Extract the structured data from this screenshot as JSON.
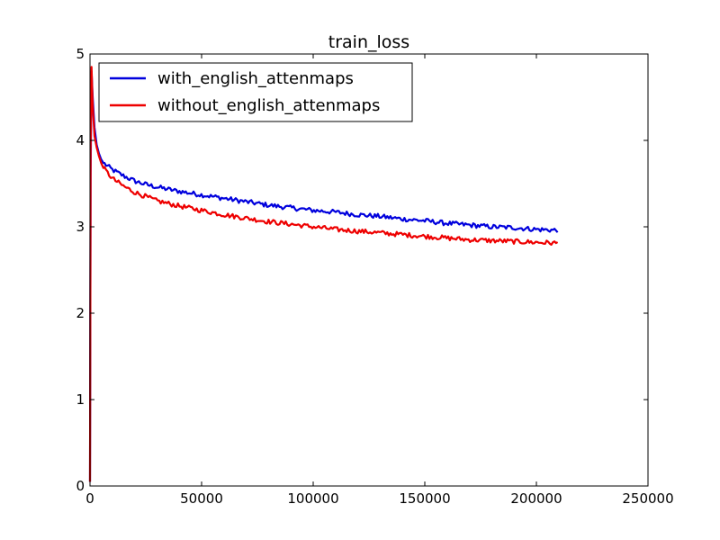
{
  "chart_data": {
    "type": "line",
    "title": "train_loss",
    "xlabel": "",
    "ylabel": "",
    "xlim": [
      0,
      250000
    ],
    "ylim": [
      0,
      5
    ],
    "xticks": [
      0,
      50000,
      100000,
      150000,
      200000,
      250000
    ],
    "xtick_labels": [
      "0",
      "50000",
      "100000",
      "150000",
      "200000",
      "250000"
    ],
    "yticks": [
      0,
      1,
      2,
      3,
      4,
      5
    ],
    "ytick_labels": [
      "0",
      "1",
      "2",
      "3",
      "4",
      "5"
    ],
    "grid": false,
    "legend_position": "top-left",
    "series": [
      {
        "name": "with_english_attenmaps",
        "color": "#0000dd",
        "x": [
          0,
          300,
          700,
          1200,
          2000,
          3000,
          4000,
          5000,
          6000,
          8000,
          10000,
          15000,
          20000,
          25000,
          30000,
          40000,
          50000,
          60000,
          70000,
          80000,
          90000,
          100000,
          110000,
          120000,
          130000,
          140000,
          150000,
          160000,
          170000,
          180000,
          190000,
          200000,
          210000
        ],
        "y": [
          0.05,
          3.6,
          4.8,
          4.5,
          4.15,
          3.95,
          3.85,
          3.78,
          3.74,
          3.7,
          3.66,
          3.59,
          3.53,
          3.49,
          3.46,
          3.41,
          3.37,
          3.33,
          3.29,
          3.25,
          3.22,
          3.19,
          3.17,
          3.14,
          3.12,
          3.09,
          3.07,
          3.04,
          3.02,
          3.0,
          2.99,
          2.97,
          2.96
        ]
      },
      {
        "name": "without_english_attenmaps",
        "color": "#ee0000",
        "x": [
          0,
          300,
          700,
          1200,
          2000,
          3000,
          4000,
          5000,
          6000,
          8000,
          10000,
          15000,
          20000,
          25000,
          30000,
          40000,
          50000,
          60000,
          70000,
          80000,
          90000,
          100000,
          110000,
          120000,
          130000,
          140000,
          150000,
          160000,
          170000,
          180000,
          190000,
          200000,
          210000
        ],
        "y": [
          0.05,
          3.9,
          4.85,
          4.4,
          4.05,
          3.92,
          3.82,
          3.74,
          3.68,
          3.62,
          3.56,
          3.47,
          3.4,
          3.35,
          3.3,
          3.24,
          3.19,
          3.14,
          3.1,
          3.06,
          3.03,
          3.0,
          2.97,
          2.95,
          2.93,
          2.91,
          2.89,
          2.87,
          2.85,
          2.84,
          2.83,
          2.82,
          2.81
        ]
      }
    ]
  }
}
